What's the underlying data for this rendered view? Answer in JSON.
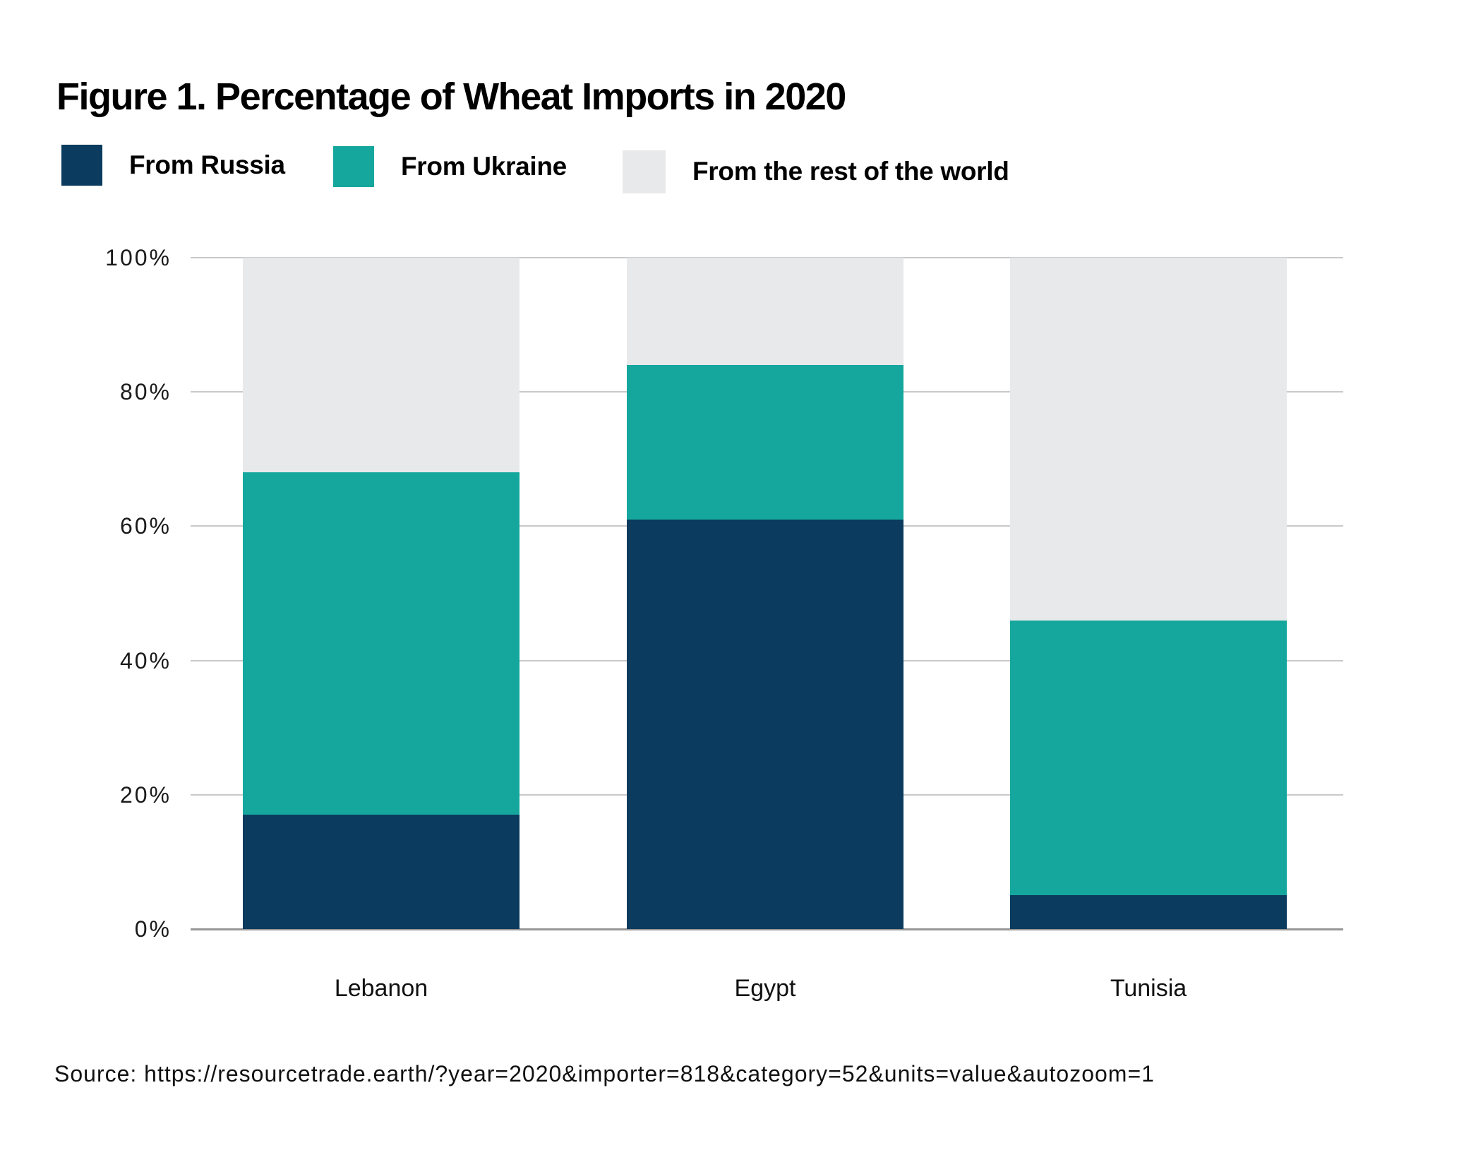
{
  "figure": {
    "title": "Figure 1. Percentage of Wheat Imports in 2020",
    "source": "Source: https://resourcetrade.earth/?year=2020&importer=818&category=52&units=value&autozoom=1"
  },
  "colors": {
    "russia": "#0b3b5e",
    "ukraine": "#15a79d",
    "rest_of_world": "#e8e9ea",
    "gridline": "#c9c9c9",
    "baseline": "#969696",
    "background": "#ffffff",
    "text": "#111111"
  },
  "chart_data": {
    "type": "bar",
    "stacked": true,
    "categories": [
      "Lebanon",
      "Egypt",
      "Tunisia"
    ],
    "series": [
      {
        "name": "From Russia",
        "color": "#0b3b5e",
        "values": [
          17,
          61,
          5
        ]
      },
      {
        "name": "From Ukraine",
        "color": "#15a79d",
        "values": [
          51,
          23,
          41
        ]
      },
      {
        "name": "From the rest of the world",
        "color": "#e8e9ea",
        "values": [
          32,
          16,
          54
        ]
      }
    ],
    "title": "Figure 1. Percentage of Wheat Imports in 2020",
    "xlabel": "",
    "ylabel": "",
    "ylim": [
      0,
      100
    ],
    "yticks": [
      {
        "value": 0,
        "label": "0%"
      },
      {
        "value": 20,
        "label": "20%"
      },
      {
        "value": 40,
        "label": "40%"
      },
      {
        "value": 60,
        "label": "60%"
      },
      {
        "value": 80,
        "label": "80%"
      },
      {
        "value": 100,
        "label": "100%"
      }
    ],
    "grid": true,
    "legend_position": "top"
  }
}
